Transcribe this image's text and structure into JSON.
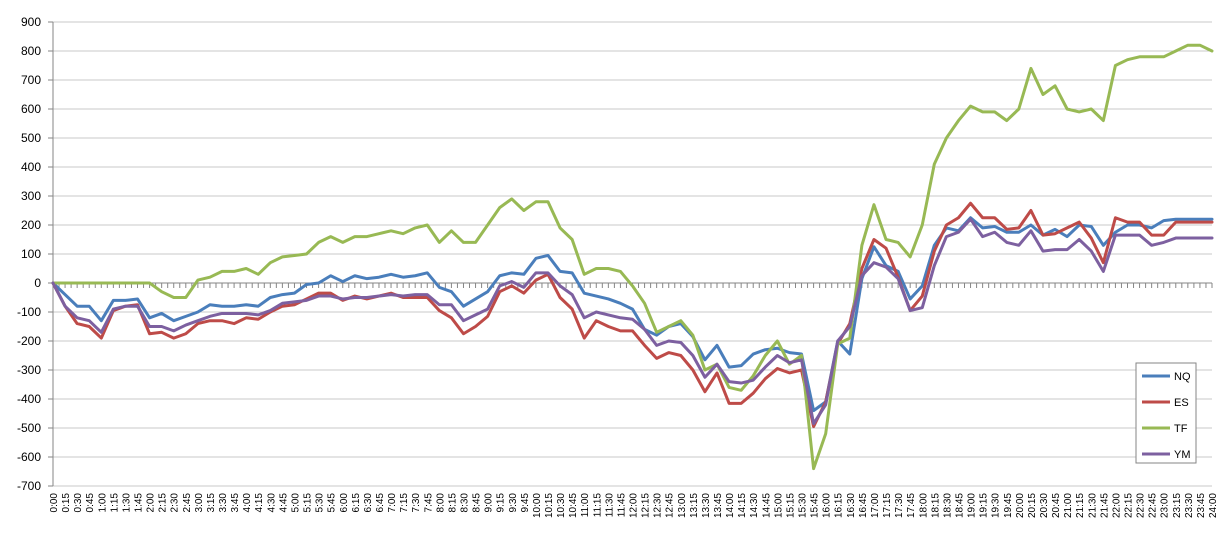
{
  "chart_data": {
    "type": "line",
    "title": "",
    "xlabel": "",
    "ylabel": "",
    "ylim": [
      -700,
      900
    ],
    "yticks": [
      -700,
      -600,
      -500,
      -400,
      -300,
      -200,
      -100,
      0,
      100,
      200,
      300,
      400,
      500,
      600,
      700,
      800,
      900
    ],
    "grid": "horizontal",
    "legend_position": "bottom-right",
    "x": [
      "0:00",
      "0:15",
      "0:30",
      "0:45",
      "1:00",
      "1:15",
      "1:30",
      "1:45",
      "2:00",
      "2:15",
      "2:30",
      "2:45",
      "3:00",
      "3:15",
      "3:30",
      "3:45",
      "4:00",
      "4:15",
      "4:30",
      "4:45",
      "5:00",
      "5:15",
      "5:30",
      "5:45",
      "6:00",
      "6:15",
      "6:30",
      "6:45",
      "7:00",
      "7:15",
      "7:30",
      "7:45",
      "8:00",
      "8:15",
      "8:30",
      "8:45",
      "9:00",
      "9:15",
      "9:30",
      "9:45",
      "10:00",
      "10:15",
      "10:30",
      "10:45",
      "11:00",
      "11:15",
      "11:30",
      "11:45",
      "12:00",
      "12:15",
      "12:30",
      "12:45",
      "13:00",
      "13:15",
      "13:30",
      "13:45",
      "14:00",
      "14:15",
      "14:30",
      "14:45",
      "15:00",
      "15:15",
      "15:30",
      "15:45",
      "16:00",
      "16:15",
      "16:30",
      "16:45",
      "17:00",
      "17:15",
      "17:30",
      "17:45",
      "18:00",
      "18:15",
      "18:30",
      "18:45",
      "19:00",
      "19:15",
      "19:30",
      "19:45",
      "20:00",
      "20:15",
      "20:30",
      "20:45",
      "21:00",
      "21:15",
      "21:30",
      "21:45",
      "22:00",
      "22:15",
      "22:30",
      "22:45",
      "23:00",
      "23:15",
      "23:30",
      "23:45",
      "24:00"
    ],
    "x_subticks_per_label": 2,
    "series": [
      {
        "name": "NQ",
        "color": "#4A7EBB",
        "values": [
          0,
          -40,
          -80,
          -80,
          -130,
          -60,
          -60,
          -55,
          -120,
          -105,
          -130,
          -115,
          -100,
          -75,
          -80,
          -80,
          -75,
          -80,
          -50,
          -40,
          -35,
          -5,
          0,
          25,
          5,
          25,
          15,
          20,
          30,
          20,
          25,
          35,
          -15,
          -30,
          -80,
          -55,
          -30,
          25,
          35,
          30,
          85,
          95,
          40,
          35,
          -35,
          -45,
          -55,
          -70,
          -90,
          -160,
          -180,
          -150,
          -140,
          -185,
          -265,
          -215,
          -290,
          -285,
          -245,
          -230,
          -225,
          -240,
          -245,
          -440,
          -410,
          -200,
          -245,
          15,
          125,
          60,
          40,
          -55,
          -10,
          130,
          190,
          180,
          225,
          190,
          195,
          175,
          175,
          200,
          165,
          185,
          160,
          200,
          195,
          130,
          175,
          200,
          200,
          190,
          215,
          220,
          220,
          220,
          220
        ]
      },
      {
        "name": "ES",
        "color": "#BE4B48",
        "values": [
          0,
          -80,
          -140,
          -150,
          -190,
          -95,
          -80,
          -75,
          -175,
          -170,
          -190,
          -175,
          -140,
          -130,
          -130,
          -140,
          -120,
          -125,
          -100,
          -80,
          -75,
          -55,
          -35,
          -35,
          -60,
          -45,
          -55,
          -45,
          -35,
          -50,
          -50,
          -50,
          -95,
          -120,
          -175,
          -150,
          -115,
          -30,
          -10,
          -35,
          10,
          30,
          -50,
          -90,
          -190,
          -130,
          -150,
          -165,
          -165,
          -215,
          -260,
          -240,
          -250,
          -300,
          -375,
          -310,
          -415,
          -415,
          -380,
          -330,
          -295,
          -310,
          -300,
          -495,
          -410,
          -210,
          -140,
          50,
          150,
          120,
          20,
          -95,
          -45,
          110,
          200,
          225,
          275,
          225,
          225,
          185,
          190,
          250,
          165,
          170,
          190,
          210,
          155,
          70,
          225,
          210,
          210,
          165,
          165,
          210,
          210,
          210,
          210
        ]
      },
      {
        "name": "TF",
        "color": "#98B954",
        "values": [
          0,
          0,
          0,
          0,
          0,
          0,
          0,
          0,
          0,
          -30,
          -50,
          -50,
          10,
          20,
          40,
          40,
          50,
          30,
          70,
          90,
          95,
          100,
          140,
          160,
          140,
          160,
          160,
          170,
          180,
          170,
          190,
          200,
          140,
          180,
          140,
          140,
          200,
          260,
          290,
          250,
          280,
          280,
          190,
          150,
          30,
          50,
          50,
          40,
          -10,
          -70,
          -170,
          -150,
          -130,
          -180,
          -300,
          -280,
          -360,
          -370,
          -320,
          -250,
          -200,
          -280,
          -250,
          -640,
          -520,
          -210,
          -190,
          130,
          270,
          150,
          140,
          90,
          200,
          410,
          500,
          560,
          610,
          590,
          590,
          560,
          600,
          740,
          650,
          680,
          600,
          590,
          600,
          560,
          750,
          770,
          780,
          780,
          780,
          800,
          820,
          820,
          800
        ]
      },
      {
        "name": "YM",
        "color": "#7D60A0",
        "values": [
          0,
          -80,
          -120,
          -130,
          -170,
          -90,
          -80,
          -80,
          -150,
          -150,
          -165,
          -145,
          -130,
          -115,
          -105,
          -105,
          -105,
          -110,
          -95,
          -70,
          -65,
          -60,
          -45,
          -45,
          -55,
          -50,
          -50,
          -45,
          -40,
          -45,
          -40,
          -40,
          -75,
          -75,
          -130,
          -110,
          -90,
          -10,
          5,
          -15,
          35,
          35,
          -10,
          -40,
          -120,
          -100,
          -110,
          -120,
          -125,
          -160,
          -215,
          -200,
          -205,
          -250,
          -325,
          -280,
          -340,
          -345,
          -335,
          -290,
          -250,
          -275,
          -265,
          -485,
          -420,
          -200,
          -150,
          25,
          70,
          55,
          15,
          -95,
          -85,
          60,
          160,
          175,
          220,
          160,
          175,
          140,
          130,
          180,
          110,
          115,
          115,
          150,
          110,
          40,
          165,
          165,
          165,
          130,
          140,
          155,
          155,
          155,
          155
        ]
      }
    ]
  }
}
